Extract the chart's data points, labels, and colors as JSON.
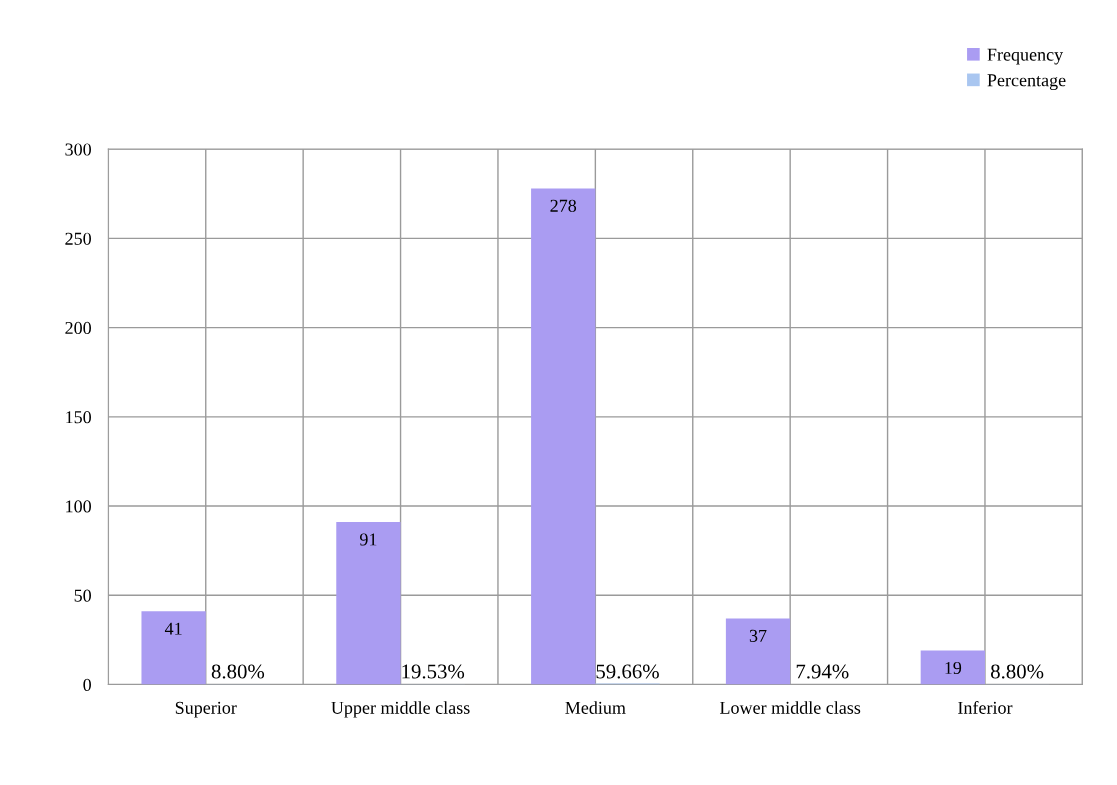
{
  "chart_data": {
    "type": "bar",
    "categories": [
      "Superior",
      "Upper middle class",
      "Medium",
      "Lower middle class",
      "Inferior"
    ],
    "series": [
      {
        "name": "Frequency",
        "color": "#aa9cf2",
        "values": [
          41,
          91,
          278,
          37,
          19
        ],
        "value_labels": [
          "41",
          "91",
          "278",
          "37",
          "19"
        ]
      },
      {
        "name": "Percentage",
        "color": "#a9c6f0",
        "values": [
          0.088,
          0.1953,
          0.5966,
          0.0794,
          0.088
        ],
        "value_labels": [
          "8.80%",
          "19.53%",
          "59.66%",
          "7.94%",
          "8.80%"
        ]
      }
    ],
    "ylim": [
      0,
      300
    ],
    "yticks": [
      0,
      50,
      100,
      150,
      200,
      250,
      300
    ],
    "grid": true,
    "legend": "top right"
  }
}
